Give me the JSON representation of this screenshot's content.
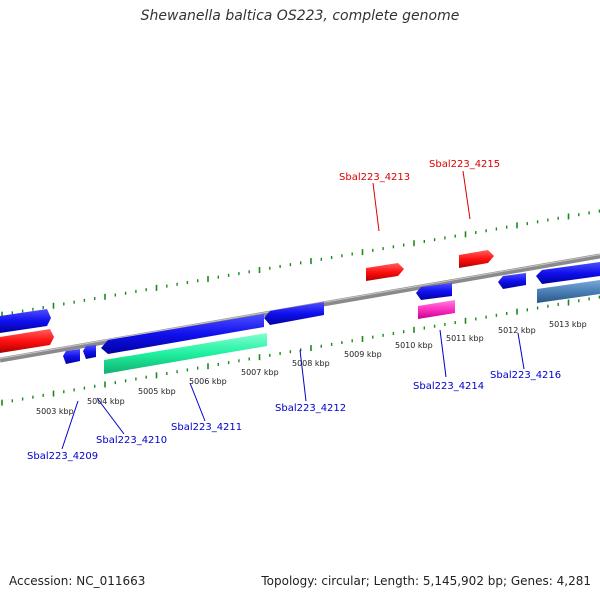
{
  "title": "Shewanella baltica OS223, complete genome",
  "footer": {
    "accession": "Accession: NC_011663",
    "topology": "Topology: circular; Length: 5,145,902 bp; Genes: 4,281"
  },
  "colors": {
    "forward_gene": "#ff1010",
    "reverse_gene": "#1010ee",
    "rna_gene": "#20f0a0",
    "pink_gene": "#ff30c0",
    "steel_gene": "#4a7fb5",
    "ticks": "#1a8a1a",
    "backbone": "#8a8a8a"
  },
  "ruler": {
    "ticks": [
      "5003 kbp",
      "5004 kbp",
      "5005 kbp",
      "5006 kbp",
      "5007 kbp",
      "5008 kbp",
      "5009 kbp",
      "5010 kbp",
      "5011 kbp",
      "5012 kbp",
      "5013 kbp"
    ]
  },
  "genes_top": [
    "Sbal223_4213",
    "Sbal223_4215"
  ],
  "genes_bottom": [
    "Sbal223_4209",
    "Sbal223_4210",
    "Sbal223_4211",
    "Sbal223_4212",
    "Sbal223_4214",
    "Sbal223_4216"
  ]
}
